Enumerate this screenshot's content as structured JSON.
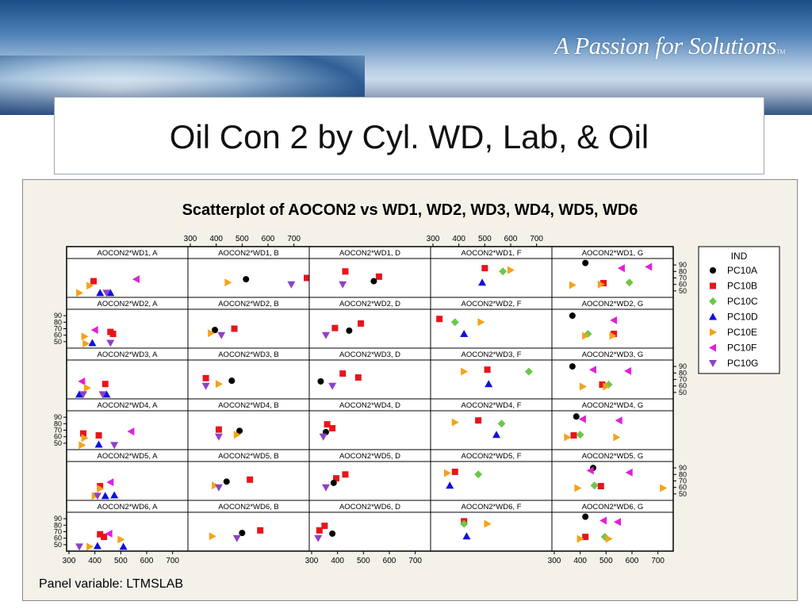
{
  "slide": {
    "tagline": "A Passion for Solutions",
    "tagline_mark": "TM",
    "title": "Oil Con 2 by Cyl. WD, Lab, & Oil"
  },
  "chart_data": {
    "type": "scatter",
    "title": "Scatterplot of AOCON2 vs WD1, WD2, WD3, WD4, WD5, WD6",
    "panel_variable_label": "Panel variable: LTMSLAB",
    "labs": [
      "A",
      "B",
      "D",
      "F",
      "G"
    ],
    "x_variables": [
      "WD1",
      "WD2",
      "WD3",
      "WD4",
      "WD5",
      "WD6"
    ],
    "y_variable": "AOCON2",
    "xlim": [
      300,
      750
    ],
    "ylim": [
      45,
      95
    ],
    "x_ticks": [
      300,
      400,
      500,
      600,
      700
    ],
    "y_ticks": [
      50,
      60,
      70,
      80,
      90
    ],
    "legend_title": "IND",
    "legend_position": "right",
    "series_style": {
      "PC10A": {
        "marker": "circle",
        "color": "#000000"
      },
      "PC10B": {
        "marker": "square",
        "color": "#e8141c"
      },
      "PC10C": {
        "marker": "diamond",
        "color": "#6cc74a"
      },
      "PC10D": {
        "marker": "triangle-up",
        "color": "#1010e0"
      },
      "PC10E": {
        "marker": "triangle-right",
        "color": "#f5a21a"
      },
      "PC10F": {
        "marker": "triangle-left",
        "color": "#e020d8"
      },
      "PC10G": {
        "marker": "triangle-down",
        "color": "#9040c8"
      }
    },
    "series_order": [
      "PC10A",
      "PC10B",
      "PC10C",
      "PC10D",
      "PC10E",
      "PC10F",
      "PC10G"
    ],
    "panels": [
      {
        "title": "AOCON2*WD1, A",
        "points": [
          {
            "s": "PC10B",
            "x": 395,
            "y": 65
          },
          {
            "s": "PC10E",
            "x": 380,
            "y": 58
          },
          {
            "s": "PC10E",
            "x": 340,
            "y": 47
          },
          {
            "s": "PC10D",
            "x": 420,
            "y": 47
          },
          {
            "s": "PC10D",
            "x": 460,
            "y": 47
          },
          {
            "s": "PC10F",
            "x": 560,
            "y": 68
          },
          {
            "s": "PC10G",
            "x": 445,
            "y": 47
          }
        ]
      },
      {
        "title": "AOCON2*WD1, B",
        "points": [
          {
            "s": "PC10A",
            "x": 515,
            "y": 68
          },
          {
            "s": "PC10B",
            "x": 770,
            "y": 70
          },
          {
            "s": "PC10E",
            "x": 445,
            "y": 63
          },
          {
            "s": "PC10G",
            "x": 690,
            "y": 60
          }
        ]
      },
      {
        "title": "AOCON2*WD1, D",
        "points": [
          {
            "s": "PC10B",
            "x": 430,
            "y": 80
          },
          {
            "s": "PC10B",
            "x": 560,
            "y": 72
          },
          {
            "s": "PC10A",
            "x": 540,
            "y": 65
          },
          {
            "s": "PC10G",
            "x": 420,
            "y": 60
          }
        ]
      },
      {
        "title": "AOCON2*WD1, F",
        "points": [
          {
            "s": "PC10B",
            "x": 500,
            "y": 85
          },
          {
            "s": "PC10C",
            "x": 570,
            "y": 80
          },
          {
            "s": "PC10E",
            "x": 600,
            "y": 82
          },
          {
            "s": "PC10D",
            "x": 490,
            "y": 63
          }
        ]
      },
      {
        "title": "AOCON2*WD1, G",
        "points": [
          {
            "s": "PC10A",
            "x": 420,
            "y": 93
          },
          {
            "s": "PC10F",
            "x": 560,
            "y": 85
          },
          {
            "s": "PC10F",
            "x": 665,
            "y": 87
          },
          {
            "s": "PC10B",
            "x": 490,
            "y": 62
          },
          {
            "s": "PC10C",
            "x": 590,
            "y": 63
          },
          {
            "s": "PC10E",
            "x": 370,
            "y": 59
          },
          {
            "s": "PC10E",
            "x": 480,
            "y": 60
          }
        ]
      },
      {
        "title": "AOCON2*WD2, A",
        "points": [
          {
            "s": "PC10F",
            "x": 400,
            "y": 68
          },
          {
            "s": "PC10B",
            "x": 460,
            "y": 65
          },
          {
            "s": "PC10B",
            "x": 470,
            "y": 62
          },
          {
            "s": "PC10E",
            "x": 360,
            "y": 58
          },
          {
            "s": "PC10D",
            "x": 390,
            "y": 48
          },
          {
            "s": "PC10E",
            "x": 365,
            "y": 47
          },
          {
            "s": "PC10G",
            "x": 460,
            "y": 48
          }
        ]
      },
      {
        "title": "AOCON2*WD2, B",
        "points": [
          {
            "s": "PC10A",
            "x": 395,
            "y": 68
          },
          {
            "s": "PC10B",
            "x": 470,
            "y": 70
          },
          {
            "s": "PC10E",
            "x": 380,
            "y": 63
          },
          {
            "s": "PC10G",
            "x": 420,
            "y": 60
          }
        ]
      },
      {
        "title": "AOCON2*WD2, D",
        "points": [
          {
            "s": "PC10B",
            "x": 390,
            "y": 71
          },
          {
            "s": "PC10B",
            "x": 490,
            "y": 78
          },
          {
            "s": "PC10A",
            "x": 445,
            "y": 67
          },
          {
            "s": "PC10G",
            "x": 355,
            "y": 60
          }
        ]
      },
      {
        "title": "AOCON2*WD2, F",
        "points": [
          {
            "s": "PC10B",
            "x": 325,
            "y": 85
          },
          {
            "s": "PC10C",
            "x": 385,
            "y": 80
          },
          {
            "s": "PC10E",
            "x": 485,
            "y": 80
          },
          {
            "s": "PC10D",
            "x": 420,
            "y": 62
          }
        ]
      },
      {
        "title": "AOCON2*WD2, G",
        "points": [
          {
            "s": "PC10A",
            "x": 370,
            "y": 90
          },
          {
            "s": "PC10F",
            "x": 530,
            "y": 83
          },
          {
            "s": "PC10C",
            "x": 430,
            "y": 62
          },
          {
            "s": "PC10B",
            "x": 530,
            "y": 62
          },
          {
            "s": "PC10E",
            "x": 420,
            "y": 59
          },
          {
            "s": "PC10E",
            "x": 525,
            "y": 59
          }
        ]
      },
      {
        "title": "AOCON2*WD3, A",
        "points": [
          {
            "s": "PC10F",
            "x": 350,
            "y": 67
          },
          {
            "s": "PC10B",
            "x": 440,
            "y": 63
          },
          {
            "s": "PC10E",
            "x": 370,
            "y": 57
          },
          {
            "s": "PC10D",
            "x": 340,
            "y": 47
          },
          {
            "s": "PC10D",
            "x": 445,
            "y": 47
          },
          {
            "s": "PC10G",
            "x": 355,
            "y": 47
          },
          {
            "s": "PC10G",
            "x": 430,
            "y": 47
          }
        ]
      },
      {
        "title": "AOCON2*WD3, B",
        "points": [
          {
            "s": "PC10B",
            "x": 360,
            "y": 72
          },
          {
            "s": "PC10A",
            "x": 460,
            "y": 68
          },
          {
            "s": "PC10E",
            "x": 410,
            "y": 63
          },
          {
            "s": "PC10G",
            "x": 360,
            "y": 60
          }
        ]
      },
      {
        "title": "AOCON2*WD3, D",
        "points": [
          {
            "s": "PC10B",
            "x": 420,
            "y": 79
          },
          {
            "s": "PC10B",
            "x": 480,
            "y": 73
          },
          {
            "s": "PC10A",
            "x": 335,
            "y": 67
          },
          {
            "s": "PC10G",
            "x": 380,
            "y": 60
          }
        ]
      },
      {
        "title": "AOCON2*WD3, F",
        "points": [
          {
            "s": "PC10B",
            "x": 510,
            "y": 85
          },
          {
            "s": "PC10C",
            "x": 670,
            "y": 82
          },
          {
            "s": "PC10E",
            "x": 420,
            "y": 82
          },
          {
            "s": "PC10D",
            "x": 515,
            "y": 63
          }
        ]
      },
      {
        "title": "AOCON2*WD3, G",
        "points": [
          {
            "s": "PC10A",
            "x": 370,
            "y": 90
          },
          {
            "s": "PC10F",
            "x": 450,
            "y": 85
          },
          {
            "s": "PC10F",
            "x": 585,
            "y": 83
          },
          {
            "s": "PC10B",
            "x": 485,
            "y": 62
          },
          {
            "s": "PC10C",
            "x": 510,
            "y": 62
          },
          {
            "s": "PC10E",
            "x": 410,
            "y": 59
          },
          {
            "s": "PC10E",
            "x": 500,
            "y": 59
          }
        ]
      },
      {
        "title": "AOCON2*WD4, A",
        "points": [
          {
            "s": "PC10F",
            "x": 540,
            "y": 68
          },
          {
            "s": "PC10B",
            "x": 355,
            "y": 65
          },
          {
            "s": "PC10B",
            "x": 415,
            "y": 62
          },
          {
            "s": "PC10E",
            "x": 360,
            "y": 58
          },
          {
            "s": "PC10E",
            "x": 350,
            "y": 47
          },
          {
            "s": "PC10D",
            "x": 415,
            "y": 48
          },
          {
            "s": "PC10G",
            "x": 475,
            "y": 47
          }
        ]
      },
      {
        "title": "AOCON2*WD4, B",
        "points": [
          {
            "s": "PC10B",
            "x": 410,
            "y": 71
          },
          {
            "s": "PC10A",
            "x": 490,
            "y": 69
          },
          {
            "s": "PC10E",
            "x": 480,
            "y": 63
          },
          {
            "s": "PC10G",
            "x": 410,
            "y": 60
          }
        ]
      },
      {
        "title": "AOCON2*WD4, D",
        "points": [
          {
            "s": "PC10B",
            "x": 360,
            "y": 79
          },
          {
            "s": "PC10B",
            "x": 380,
            "y": 73
          },
          {
            "s": "PC10A",
            "x": 355,
            "y": 67
          },
          {
            "s": "PC10G",
            "x": 345,
            "y": 60
          }
        ]
      },
      {
        "title": "AOCON2*WD4, F",
        "points": [
          {
            "s": "PC10B",
            "x": 475,
            "y": 85
          },
          {
            "s": "PC10C",
            "x": 565,
            "y": 80
          },
          {
            "s": "PC10E",
            "x": 385,
            "y": 82
          },
          {
            "s": "PC10D",
            "x": 545,
            "y": 63
          }
        ]
      },
      {
        "title": "AOCON2*WD4, G",
        "points": [
          {
            "s": "PC10A",
            "x": 385,
            "y": 91
          },
          {
            "s": "PC10F",
            "x": 410,
            "y": 87
          },
          {
            "s": "PC10F",
            "x": 550,
            "y": 85
          },
          {
            "s": "PC10B",
            "x": 375,
            "y": 62
          },
          {
            "s": "PC10C",
            "x": 400,
            "y": 63
          },
          {
            "s": "PC10E",
            "x": 350,
            "y": 59
          },
          {
            "s": "PC10E",
            "x": 540,
            "y": 59
          }
        ]
      },
      {
        "title": "AOCON2*WD5, A",
        "points": [
          {
            "s": "PC10F",
            "x": 460,
            "y": 68
          },
          {
            "s": "PC10B",
            "x": 420,
            "y": 62
          },
          {
            "s": "PC10E",
            "x": 420,
            "y": 58
          },
          {
            "s": "PC10D",
            "x": 440,
            "y": 47
          },
          {
            "s": "PC10D",
            "x": 475,
            "y": 48
          },
          {
            "s": "PC10E",
            "x": 400,
            "y": 47
          },
          {
            "s": "PC10G",
            "x": 410,
            "y": 47
          }
        ]
      },
      {
        "title": "AOCON2*WD5, B",
        "points": [
          {
            "s": "PC10B",
            "x": 530,
            "y": 72
          },
          {
            "s": "PC10A",
            "x": 440,
            "y": 69
          },
          {
            "s": "PC10E",
            "x": 395,
            "y": 63
          },
          {
            "s": "PC10G",
            "x": 410,
            "y": 60
          }
        ]
      },
      {
        "title": "AOCON2*WD5, D",
        "points": [
          {
            "s": "PC10B",
            "x": 430,
            "y": 80
          },
          {
            "s": "PC10B",
            "x": 395,
            "y": 74
          },
          {
            "s": "PC10A",
            "x": 385,
            "y": 67
          },
          {
            "s": "PC10G",
            "x": 355,
            "y": 60
          }
        ]
      },
      {
        "title": "AOCON2*WD5, F",
        "points": [
          {
            "s": "PC10B",
            "x": 385,
            "y": 84
          },
          {
            "s": "PC10E",
            "x": 355,
            "y": 82
          },
          {
            "s": "PC10C",
            "x": 475,
            "y": 80
          },
          {
            "s": "PC10D",
            "x": 365,
            "y": 63
          }
        ]
      },
      {
        "title": "AOCON2*WD5, G",
        "points": [
          {
            "s": "PC10A",
            "x": 450,
            "y": 90
          },
          {
            "s": "PC10F",
            "x": 440,
            "y": 86
          },
          {
            "s": "PC10F",
            "x": 590,
            "y": 83
          },
          {
            "s": "PC10C",
            "x": 455,
            "y": 63
          },
          {
            "s": "PC10B",
            "x": 480,
            "y": 62
          },
          {
            "s": "PC10E",
            "x": 390,
            "y": 59
          },
          {
            "s": "PC10E",
            "x": 720,
            "y": 59
          }
        ]
      },
      {
        "title": "AOCON2*WD6, A",
        "points": [
          {
            "s": "PC10B",
            "x": 420,
            "y": 66
          },
          {
            "s": "PC10F",
            "x": 455,
            "y": 67
          },
          {
            "s": "PC10B",
            "x": 435,
            "y": 62
          },
          {
            "s": "PC10E",
            "x": 500,
            "y": 58
          },
          {
            "s": "PC10D",
            "x": 410,
            "y": 48
          },
          {
            "s": "PC10D",
            "x": 510,
            "y": 47
          },
          {
            "s": "PC10G",
            "x": 340,
            "y": 47
          },
          {
            "s": "PC10E",
            "x": 380,
            "y": 47
          }
        ]
      },
      {
        "title": "AOCON2*WD6, B",
        "points": [
          {
            "s": "PC10B",
            "x": 570,
            "y": 72
          },
          {
            "s": "PC10A",
            "x": 500,
            "y": 68
          },
          {
            "s": "PC10E",
            "x": 385,
            "y": 63
          },
          {
            "s": "PC10G",
            "x": 480,
            "y": 60
          }
        ]
      },
      {
        "title": "AOCON2*WD6, D",
        "points": [
          {
            "s": "PC10B",
            "x": 350,
            "y": 79
          },
          {
            "s": "PC10B",
            "x": 330,
            "y": 72
          },
          {
            "s": "PC10A",
            "x": 380,
            "y": 67
          },
          {
            "s": "PC10G",
            "x": 325,
            "y": 60
          }
        ]
      },
      {
        "title": "AOCON2*WD6, F",
        "points": [
          {
            "s": "PC10B",
            "x": 420,
            "y": 86
          },
          {
            "s": "PC10C",
            "x": 420,
            "y": 82
          },
          {
            "s": "PC10E",
            "x": 510,
            "y": 82
          },
          {
            "s": "PC10D",
            "x": 430,
            "y": 63
          }
        ]
      },
      {
        "title": "AOCON2*WD6, G",
        "points": [
          {
            "s": "PC10A",
            "x": 420,
            "y": 93
          },
          {
            "s": "PC10F",
            "x": 490,
            "y": 87
          },
          {
            "s": "PC10F",
            "x": 545,
            "y": 85
          },
          {
            "s": "PC10B",
            "x": 420,
            "y": 62
          },
          {
            "s": "PC10C",
            "x": 495,
            "y": 62
          },
          {
            "s": "PC10E",
            "x": 400,
            "y": 59
          },
          {
            "s": "PC10E",
            "x": 510,
            "y": 59
          }
        ]
      }
    ]
  }
}
